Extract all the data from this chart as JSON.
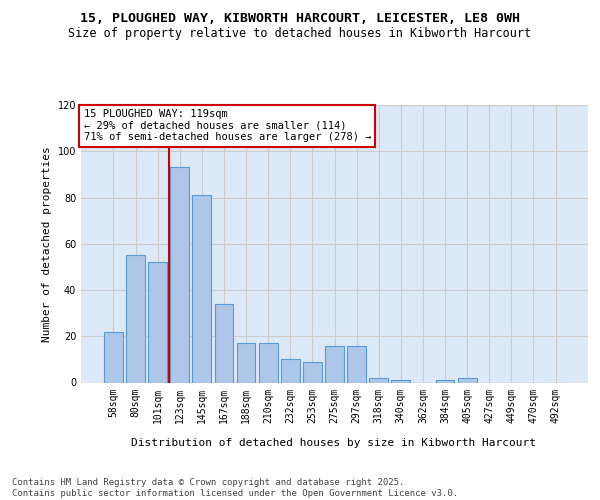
{
  "title": "15, PLOUGHED WAY, KIBWORTH HARCOURT, LEICESTER, LE8 0WH",
  "subtitle": "Size of property relative to detached houses in Kibworth Harcourt",
  "xlabel": "Distribution of detached houses by size in Kibworth Harcourt",
  "ylabel": "Number of detached properties",
  "categories": [
    "58sqm",
    "80sqm",
    "101sqm",
    "123sqm",
    "145sqm",
    "167sqm",
    "188sqm",
    "210sqm",
    "232sqm",
    "253sqm",
    "275sqm",
    "297sqm",
    "318sqm",
    "340sqm",
    "362sqm",
    "384sqm",
    "405sqm",
    "427sqm",
    "449sqm",
    "470sqm",
    "492sqm"
  ],
  "values": [
    22,
    55,
    52,
    93,
    81,
    34,
    17,
    17,
    10,
    9,
    16,
    16,
    2,
    1,
    0,
    1,
    2,
    0,
    0,
    0,
    0
  ],
  "bar_color": "#aec6e8",
  "bar_edge_color": "#5b9bd5",
  "vline_x_index": 3,
  "vline_color": "#cc0000",
  "annotation_box_text": "15 PLOUGHED WAY: 119sqm\n← 29% of detached houses are smaller (114)\n71% of semi-detached houses are larger (278) →",
  "annotation_box_color": "#cc0000",
  "annotation_box_bg": "#ffffff",
  "ylim": [
    0,
    120
  ],
  "yticks": [
    0,
    20,
    40,
    60,
    80,
    100,
    120
  ],
  "grid_color": "#cccccc",
  "bg_color": "#dce9f7",
  "footer": "Contains HM Land Registry data © Crown copyright and database right 2025.\nContains public sector information licensed under the Open Government Licence v3.0.",
  "title_fontsize": 9.5,
  "subtitle_fontsize": 8.5,
  "axis_label_fontsize": 8,
  "tick_fontsize": 7,
  "footer_fontsize": 6.5,
  "annotation_fontsize": 7.5
}
